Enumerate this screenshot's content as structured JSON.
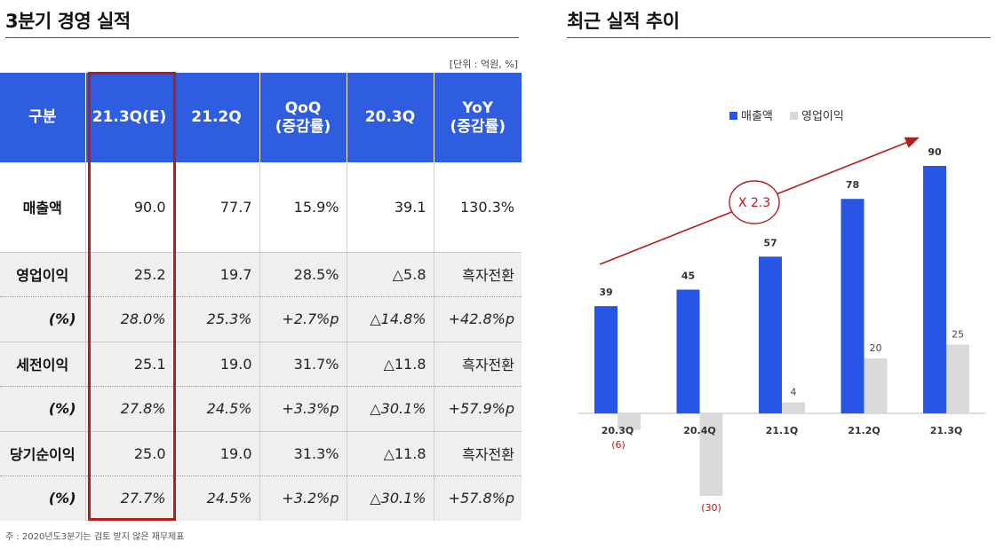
{
  "left": {
    "title": "3분기 경영 실적",
    "unit_note": "[단위 : 억원, %]",
    "columns": [
      "구분",
      "21.3Q(E)",
      "21.2Q",
      "QoQ\n(증감률)",
      "20.3Q",
      "YoY\n(증감률)"
    ],
    "rows": [
      {
        "type": "sales",
        "cells": [
          "매출액",
          "90.0",
          "77.7",
          "15.9%",
          "39.1",
          "130.3%"
        ]
      },
      {
        "type": "main",
        "cells": [
          "영업이익",
          "25.2",
          "19.7",
          "28.5%",
          "△5.8",
          "흑자전환"
        ]
      },
      {
        "type": "pct",
        "cells": [
          "(%)",
          "28.0%",
          "25.3%",
          "+2.7%p",
          "△14.8%",
          "+42.8%p"
        ]
      },
      {
        "type": "main",
        "cells": [
          "세전이익",
          "25.1",
          "19.0",
          "31.7%",
          "△11.8",
          "흑자전환"
        ]
      },
      {
        "type": "pct",
        "cells": [
          "(%)",
          "27.8%",
          "24.5%",
          "+3.3%p",
          "△30.1%",
          "+57.9%p"
        ]
      },
      {
        "type": "main",
        "cells": [
          "당기순이익",
          "25.0",
          "19.0",
          "31.3%",
          "△11.8",
          "흑자전환"
        ]
      },
      {
        "type": "pct",
        "cells": [
          "(%)",
          "27.7%",
          "24.5%",
          "+3.2%p",
          "△30.1%",
          "+57.8%p"
        ]
      }
    ],
    "footnote": "주 : 2020년도3분기는 검토 받지 않은 재무제표",
    "highlight_color": "#b51c1c",
    "header_color": "#2f5de0"
  },
  "right": {
    "title": "최근 실적 추이",
    "multiplier_label": "X 2.3"
  },
  "chart_data": {
    "type": "bar",
    "categories": [
      "20.3Q",
      "20.4Q",
      "21.1Q",
      "21.2Q",
      "21.3Q"
    ],
    "series": [
      {
        "name": "매출액",
        "values": [
          39,
          45,
          57,
          78,
          90
        ],
        "color": "#2756e6"
      },
      {
        "name": "영업이익",
        "values": [
          -6,
          -30,
          4,
          20,
          25
        ],
        "color": "#d9d9d9"
      }
    ],
    "data_labels": {
      "매출액": [
        "39",
        "45",
        "57",
        "78",
        "90"
      ],
      "영업이익": [
        "(6)",
        "(30)",
        "4",
        "20",
        "25"
      ]
    },
    "legend_placement": "top-center",
    "grid": false
  }
}
